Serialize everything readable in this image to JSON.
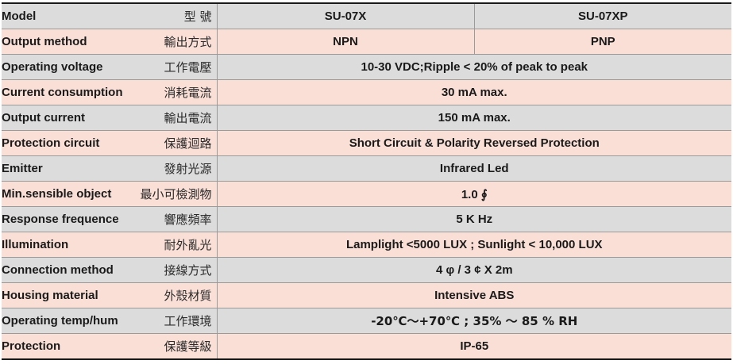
{
  "columns": {
    "model_label": "Model",
    "model_label_cn": "型 號",
    "model_a": "SU-07X",
    "model_b": "SU-07XP"
  },
  "rows": [
    {
      "label": "Output method",
      "cn": "輸出方式",
      "value_a": "NPN",
      "value_b": "PNP"
    },
    {
      "label": "Operating voltage",
      "cn": "工作電壓",
      "value": "10-30 VDC;Ripple < 20% of peak to peak"
    },
    {
      "label": "Current consumption",
      "cn": "消耗電流",
      "value": "30 mA max."
    },
    {
      "label": "Output current",
      "cn": "輸出電流",
      "value": "150 mA max."
    },
    {
      "label": "Protection circuit",
      "cn": "保護迴路",
      "value": "Short Circuit & Polarity Reversed Protection"
    },
    {
      "label": "Emitter",
      "cn": "發射光源",
      "value": "Infrared Led"
    },
    {
      "label": "Min.sensible object",
      "cn": "最小可檢測物",
      "value": "1.0 ∮"
    },
    {
      "label": "Response frequence",
      "cn": "響應頻率",
      "value": "5 K Hz"
    },
    {
      "label": "Illumination",
      "cn": "耐外亂光",
      "value": "Lamplight <5000 LUX ; Sunlight < 10,000 LUX"
    },
    {
      "label": "Connection method",
      "cn": "接線方式",
      "value": "4 φ / 3 ¢  X 2m"
    },
    {
      "label": "Housing material",
      "cn": "外殼材質",
      "value": "Intensive ABS"
    },
    {
      "label": "Operating temp/hum",
      "cn": "工作環境",
      "value": "-20℃～+70℃ ; 35% ～ 85 % RH"
    },
    {
      "label": "Protection",
      "cn": "保護等級",
      "value": "IP-65"
    }
  ]
}
